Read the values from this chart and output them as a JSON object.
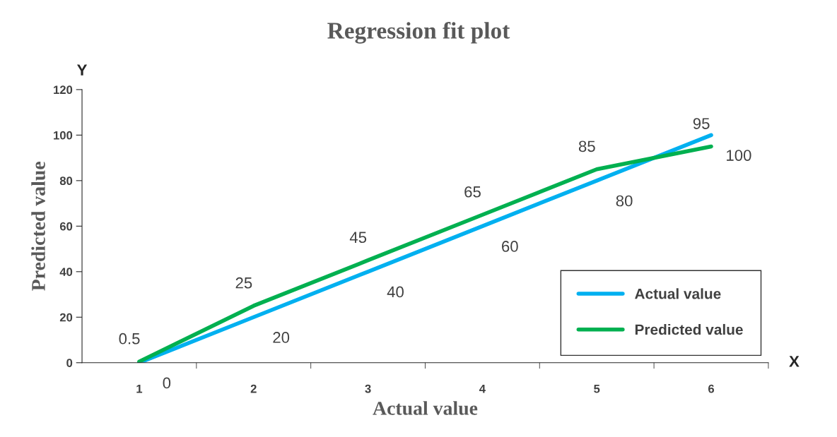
{
  "chart_data": {
    "type": "line",
    "title": "Regression fit plot",
    "xlabel": "Actual value",
    "ylabel": "Predicted value",
    "categories": [
      "1",
      "2",
      "3",
      "4",
      "5",
      "6"
    ],
    "series": [
      {
        "name": "Actual value",
        "color": "#00b0f0",
        "values": [
          0,
          20,
          40,
          60,
          80,
          100
        ]
      },
      {
        "name": "Predicted value",
        "color": "#00b050",
        "values": [
          0.5,
          25,
          45,
          65,
          85,
          95
        ]
      }
    ],
    "ylim": [
      0,
      120
    ],
    "yticks": [
      0,
      20,
      40,
      60,
      80,
      100,
      120
    ],
    "annotations": [
      "Y",
      "X"
    ],
    "data_labels": true,
    "legend": "lower right",
    "grid": false,
    "marker": "none",
    "line_style": "solid"
  }
}
